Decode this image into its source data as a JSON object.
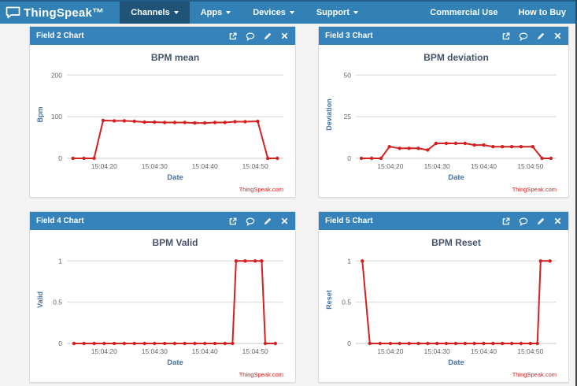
{
  "navbar": {
    "brand": "ThingSpeak™",
    "items": [
      {
        "label": "Channels",
        "active": true
      },
      {
        "label": "Apps",
        "active": false
      },
      {
        "label": "Devices",
        "active": false
      },
      {
        "label": "Support",
        "active": false
      }
    ],
    "right_items": [
      {
        "label": "Commercial Use"
      },
      {
        "label": "How to Buy"
      }
    ]
  },
  "panels": [
    {
      "title": "Field 2 Chart"
    },
    {
      "title": "Field 3 Chart"
    },
    {
      "title": "Field 4 Chart"
    },
    {
      "title": "Field 5 Chart"
    }
  ],
  "panel_icons": [
    "external-link",
    "comment",
    "edit",
    "close"
  ],
  "colors": {
    "navbar_bg": "#3181b6",
    "navbar_active_bg": "#1f5377",
    "panel_header_bg": "#3583ba",
    "series_red": "#d62020",
    "credit_red": "#d62020",
    "chart_title": "#44546a",
    "axis_title": "#4572a7",
    "tick_label": "#666666",
    "gridline": "#d8d8d8",
    "axis_line": "#c9c9c9"
  },
  "credit": "ThingSpeak.com",
  "chart_data": [
    {
      "type": "line",
      "title": "BPM mean",
      "xlabel": "Date",
      "ylabel": "Bpm",
      "legend": "none",
      "grid": true,
      "xlim": [
        12.6,
        55.6
      ],
      "ymax": 210,
      "yticks": [
        {
          "v": 0,
          "label": "0"
        },
        {
          "v": 100,
          "label": "100"
        },
        {
          "v": 200,
          "label": "200"
        }
      ],
      "xticks": [
        {
          "v": 20,
          "label": "15:04:20"
        },
        {
          "v": 30,
          "label": "15:04:30"
        },
        {
          "v": 40,
          "label": "15:04:40"
        },
        {
          "v": 50,
          "label": "15:04:50"
        }
      ],
      "x": [
        13.8,
        16,
        18,
        19.8,
        22,
        24,
        26,
        28,
        30,
        32,
        34,
        36,
        38,
        40,
        42,
        44,
        46,
        48,
        50.5,
        52.5,
        54.4
      ],
      "y": [
        0,
        0,
        0,
        91,
        90,
        90,
        89,
        87,
        87,
        86,
        86,
        86,
        85,
        85,
        86,
        86,
        88,
        88,
        89,
        0,
        0
      ]
    },
    {
      "type": "line",
      "title": "BPM deviation",
      "xlabel": "Date",
      "ylabel": "Deviation",
      "legend": "none",
      "grid": true,
      "xlim": [
        12.6,
        55.6
      ],
      "ymax": 52.5,
      "yticks": [
        {
          "v": 0,
          "label": "0"
        },
        {
          "v": 25,
          "label": "25"
        },
        {
          "v": 50,
          "label": "50"
        }
      ],
      "xticks": [
        {
          "v": 20,
          "label": "15:04:20"
        },
        {
          "v": 30,
          "label": "15:04:30"
        },
        {
          "v": 40,
          "label": "15:04:40"
        },
        {
          "v": 50,
          "label": "15:04:50"
        }
      ],
      "x": [
        13.8,
        16,
        18,
        19.8,
        22,
        24,
        26,
        28,
        29.8,
        32,
        34,
        36,
        38,
        40,
        42,
        44,
        46,
        48,
        50.5,
        52.5,
        54.4
      ],
      "y": [
        0,
        0,
        0,
        7,
        6,
        6,
        6,
        5,
        9,
        9,
        9,
        9,
        8,
        8,
        7,
        7,
        7,
        7,
        7,
        0,
        0
      ]
    },
    {
      "type": "line",
      "title": "BPM Valid",
      "xlabel": "Date",
      "ylabel": "Valid",
      "legend": "none",
      "grid": true,
      "xlim": [
        12.6,
        55.6
      ],
      "ymax": 1.06,
      "yticks": [
        {
          "v": 0,
          "label": "0"
        },
        {
          "v": 0.5,
          "label": "0.5"
        },
        {
          "v": 1,
          "label": "1"
        }
      ],
      "xticks": [
        {
          "v": 20,
          "label": "15:04:20"
        },
        {
          "v": 30,
          "label": "15:04:30"
        },
        {
          "v": 40,
          "label": "15:04:40"
        },
        {
          "v": 50,
          "label": "15:04:50"
        }
      ],
      "x": [
        14,
        16,
        18,
        20,
        22,
        24,
        26,
        28,
        30,
        32,
        34,
        36,
        38,
        40,
        42,
        44,
        45.5,
        46.2,
        48,
        50,
        51.3,
        52,
        54
      ],
      "y": [
        0,
        0,
        0,
        0,
        0,
        0,
        0,
        0,
        0,
        0,
        0,
        0,
        0,
        0,
        0,
        0,
        0,
        1,
        1,
        1,
        1,
        0,
        0
      ]
    },
    {
      "type": "line",
      "title": "BPM Reset",
      "xlabel": "Date",
      "ylabel": "Reset",
      "legend": "none",
      "grid": true,
      "xlim": [
        12.6,
        55.6
      ],
      "ymax": 1.06,
      "yticks": [
        {
          "v": 0,
          "label": "0"
        },
        {
          "v": 0.5,
          "label": "0.5"
        },
        {
          "v": 1,
          "label": "1"
        }
      ],
      "xticks": [
        {
          "v": 20,
          "label": "15:04:20"
        },
        {
          "v": 30,
          "label": "15:04:30"
        },
        {
          "v": 40,
          "label": "15:04:40"
        },
        {
          "v": 50,
          "label": "15:04:50"
        }
      ],
      "x": [
        14,
        15.6,
        17.8,
        20,
        22,
        24,
        26,
        28,
        30,
        32,
        34,
        36,
        38,
        40,
        42,
        44,
        46,
        48,
        50,
        51.5,
        52.2,
        54.2
      ],
      "y": [
        1,
        0,
        0,
        0,
        0,
        0,
        0,
        0,
        0,
        0,
        0,
        0,
        0,
        0,
        0,
        0,
        0,
        0,
        0,
        0,
        1,
        1
      ]
    }
  ]
}
